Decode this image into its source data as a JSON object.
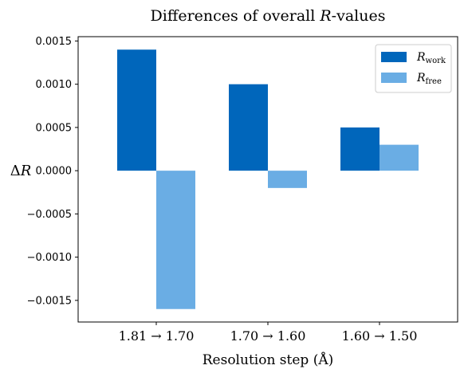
{
  "chart_data": {
    "type": "bar",
    "title": "Differences of overall R-values",
    "title_parts": {
      "prefix": "Differences of overall ",
      "italic": "R",
      "suffix": "-values"
    },
    "xlabel": "Resolution step (Å)",
    "ylabel": "ΔR",
    "ylabel_parts": {
      "symbol": "Δ",
      "italic": "R"
    },
    "categories": [
      "1.81 → 1.70",
      "1.70 → 1.60",
      "1.60 → 1.50"
    ],
    "series": [
      {
        "name": "R_work",
        "label_base": "R",
        "label_sub": "work",
        "color": "#0066bb",
        "values": [
          0.0014,
          0.001,
          0.0005
        ]
      },
      {
        "name": "R_free",
        "label_base": "R",
        "label_sub": "free",
        "color": "#6aade4",
        "values": [
          -0.0016,
          -0.0002,
          0.0003
        ]
      }
    ],
    "yticks": [
      -0.0015,
      -0.001,
      -0.0005,
      0.0,
      0.0005,
      0.001,
      0.0015
    ],
    "ytick_labels": [
      "−0.0015",
      "−0.0010",
      "−0.0005",
      "0.0000",
      "0.0005",
      "0.0010",
      "0.0015"
    ],
    "ylim": [
      -0.00175,
      0.00155
    ],
    "grid": false,
    "legend": "top-right"
  }
}
